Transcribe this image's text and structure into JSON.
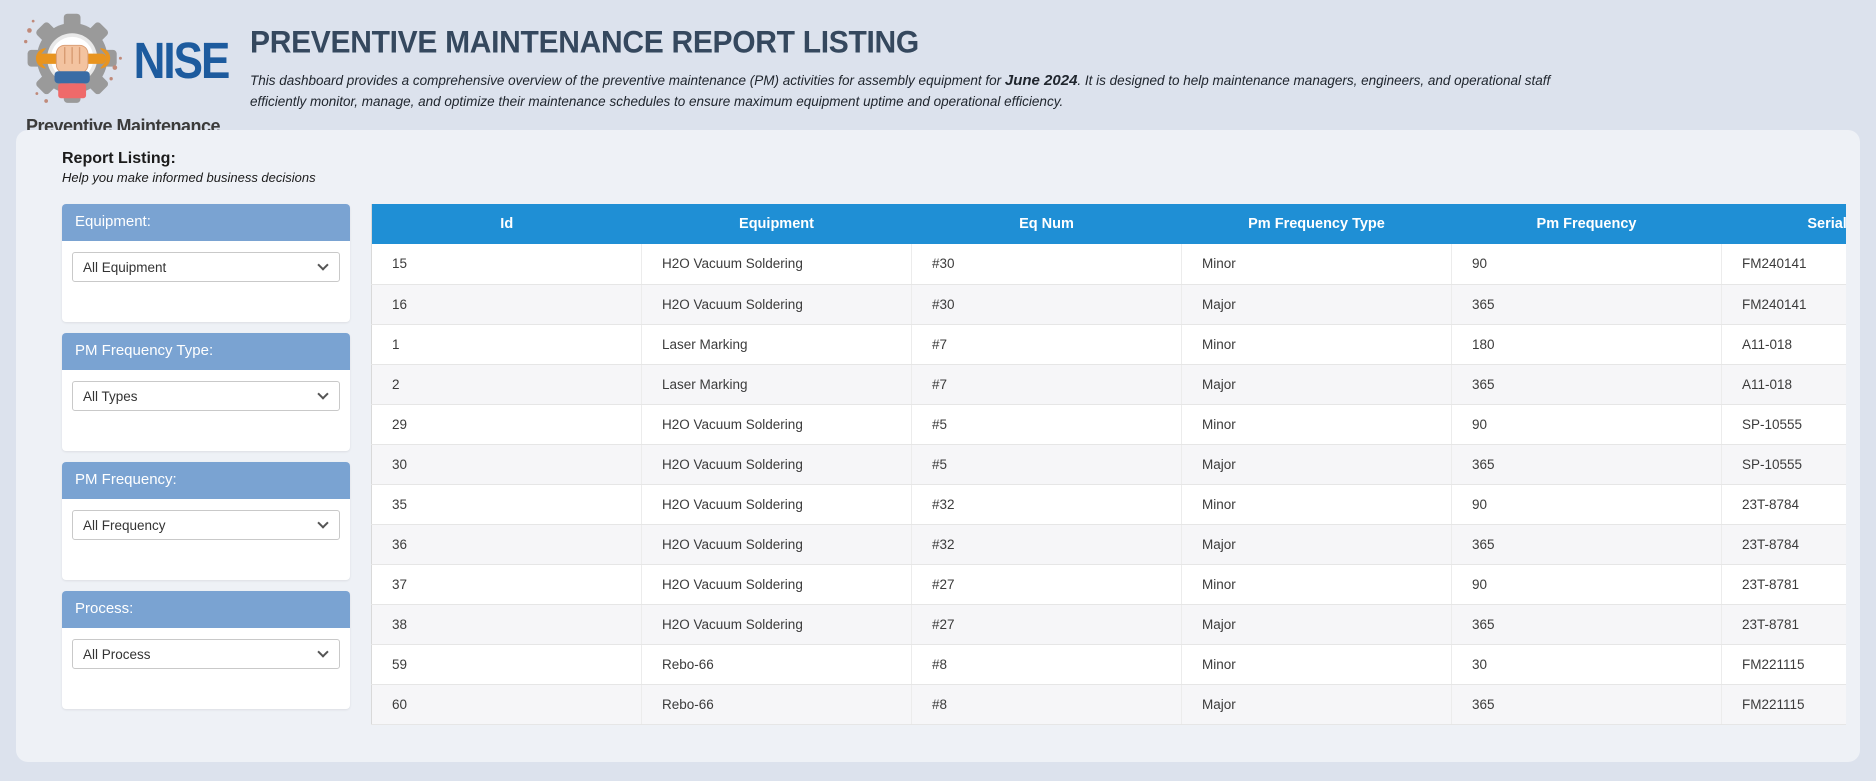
{
  "logo": {
    "brand": "NISE",
    "caption": "Preventive Maintenance"
  },
  "header": {
    "title": "PREVENTIVE MAINTENANCE REPORT LISTING",
    "description_part1": "This dashboard provides a comprehensive overview of the preventive maintenance (PM) activities for assembly equipment for ",
    "description_date": "June 2024",
    "description_part2": ". It is designed to help maintenance managers, engineers, and operational staff efficiently monitor, manage, and optimize their maintenance schedules to ensure maximum equipment uptime and operational efficiency."
  },
  "report": {
    "heading": "Report Listing:",
    "subheading": "Help you make informed business decisions"
  },
  "filters": [
    {
      "label": "Equipment:",
      "value": "All Equipment"
    },
    {
      "label": "PM Frequency Type:",
      "value": "All Types"
    },
    {
      "label": "PM Frequency:",
      "value": "All Frequency"
    },
    {
      "label": "Process:",
      "value": "All Process"
    }
  ],
  "table": {
    "columns": [
      "Id",
      "Equipment",
      "Eq Num",
      "Pm Frequency Type",
      "Pm Frequency",
      "Serial Number"
    ],
    "rows": [
      [
        "15",
        "H2O Vacuum Soldering",
        "#30",
        "Minor",
        "90",
        "FM240141"
      ],
      [
        "16",
        "H2O Vacuum Soldering",
        "#30",
        "Major",
        "365",
        "FM240141"
      ],
      [
        "1",
        "Laser Marking",
        "#7",
        "Minor",
        "180",
        "A11-018"
      ],
      [
        "2",
        "Laser Marking",
        "#7",
        "Major",
        "365",
        "A11-018"
      ],
      [
        "29",
        "H2O Vacuum Soldering",
        "#5",
        "Minor",
        "90",
        "SP-10555"
      ],
      [
        "30",
        "H2O Vacuum Soldering",
        "#5",
        "Major",
        "365",
        "SP-10555"
      ],
      [
        "35",
        "H2O Vacuum Soldering",
        "#32",
        "Minor",
        "90",
        "23T-8784"
      ],
      [
        "36",
        "H2O Vacuum Soldering",
        "#32",
        "Major",
        "365",
        "23T-8784"
      ],
      [
        "37",
        "H2O Vacuum Soldering",
        "#27",
        "Minor",
        "90",
        "23T-8781"
      ],
      [
        "38",
        "H2O Vacuum Soldering",
        "#27",
        "Major",
        "365",
        "23T-8781"
      ],
      [
        "59",
        "Rebo-66",
        "#8",
        "Minor",
        "30",
        "FM221115"
      ],
      [
        "60",
        "Rebo-66",
        "#8",
        "Major",
        "365",
        "FM221115"
      ]
    ]
  },
  "colors": {
    "table_header": "#1f8fd5",
    "filter_header": "#7aa3d2",
    "title_color": "#35485e",
    "brand_blue": "#1d5b9e"
  }
}
